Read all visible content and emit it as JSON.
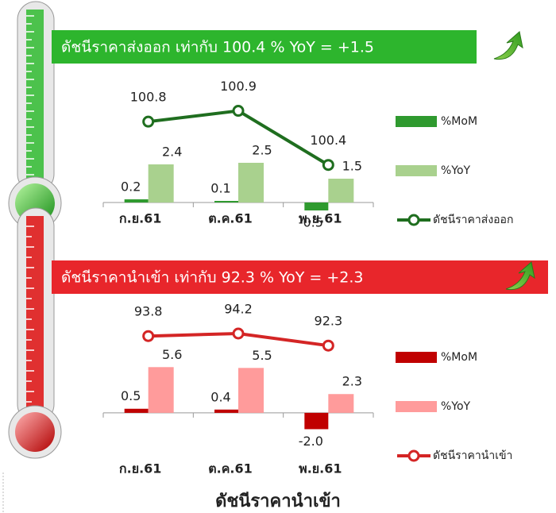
{
  "chart_data": [
    {
      "type": "bar",
      "title": "ดัชนีราคาส่งออก เท่ากับ  100.4  %  YoY = +1.5",
      "banner_color": "#2db52d",
      "categories": [
        "ก.ย.61",
        "ต.ค.61",
        "พ.ย.61"
      ],
      "series": [
        {
          "name": "%MoM",
          "color": "#2f9a2f",
          "values": [
            0.2,
            0.1,
            -0.5
          ]
        },
        {
          "name": "%YoY",
          "color": "#a9d18e",
          "values": [
            2.4,
            2.5,
            1.5
          ]
        },
        {
          "name": "ดัชนีราคาส่งออก",
          "color": "#1f6e1f",
          "type": "line",
          "axis": "y2",
          "values": [
            100.8,
            100.9,
            100.4
          ]
        }
      ],
      "ylim": [
        -2,
        7
      ],
      "y2lim": [
        99.76,
        101.08
      ]
    },
    {
      "type": "bar",
      "title": "ดัชนีราคานำเข้า เท่ากับ  92.3 %  YoY = +2.3",
      "banner_color": "#e8262b",
      "categories": [
        "ก.ย.61",
        "ต.ค.61",
        "พ.ย.61"
      ],
      "series": [
        {
          "name": "%MoM",
          "color": "#c00000",
          "values": [
            0.5,
            0.4,
            -2.0
          ],
          "value_labels": [
            "0.5",
            "0.4",
            "-2.0"
          ]
        },
        {
          "name": "%YoY",
          "color": "#ff9b9b",
          "values": [
            5.6,
            5.5,
            2.3
          ]
        },
        {
          "name": "ดัชนีราคานำเข้า",
          "color": "#d42525",
          "type": "line",
          "axis": "y2",
          "values": [
            93.8,
            94.2,
            92.3
          ]
        }
      ],
      "ylim": [
        -3.9,
        13.6
      ],
      "y2lim": [
        76.7,
        99.2
      ]
    }
  ],
  "caption": "ดัชนีราคานำเข้า"
}
